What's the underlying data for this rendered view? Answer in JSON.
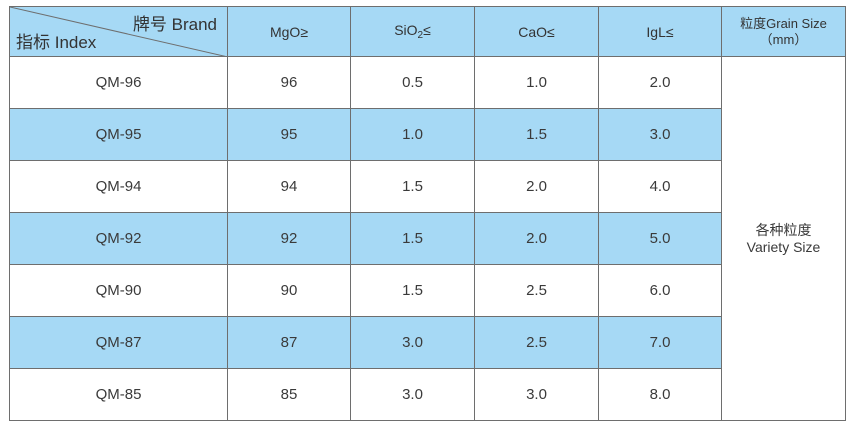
{
  "header": {
    "brand": "牌号 Brand",
    "index": "指标 Index",
    "mgo": "MgO≥",
    "sio_base": "SiO",
    "sio_sub": "2",
    "sio_sym": "≤",
    "cao": "CaO≤",
    "igl": "IgL≤",
    "size_line1": "粒度Grain Size",
    "size_line2": "（mm）"
  },
  "rows": [
    {
      "grade": "QM-96",
      "mgo": "96",
      "sio2": "0.5",
      "cao": "1.0",
      "igl": "2.0"
    },
    {
      "grade": "QM-95",
      "mgo": "95",
      "sio2": "1.0",
      "cao": "1.5",
      "igl": "3.0"
    },
    {
      "grade": "QM-94",
      "mgo": "94",
      "sio2": "1.5",
      "cao": "2.0",
      "igl": "4.0"
    },
    {
      "grade": "QM-92",
      "mgo": "92",
      "sio2": "1.5",
      "cao": "2.0",
      "igl": "5.0"
    },
    {
      "grade": "QM-90",
      "mgo": "90",
      "sio2": "1.5",
      "cao": "2.5",
      "igl": "6.0"
    },
    {
      "grade": "QM-87",
      "mgo": "87",
      "sio2": "3.0",
      "cao": "2.5",
      "igl": "7.0"
    },
    {
      "grade": "QM-85",
      "mgo": "85",
      "sio2": "3.0",
      "cao": "3.0",
      "igl": "8.0"
    }
  ],
  "size": {
    "line1": "各种粒度",
    "line2": "Variety Size"
  },
  "colors": {
    "header_bg": "#a6d9f5",
    "shaded_row_bg": "#a6d9f5",
    "border": "#6e6e6e"
  }
}
